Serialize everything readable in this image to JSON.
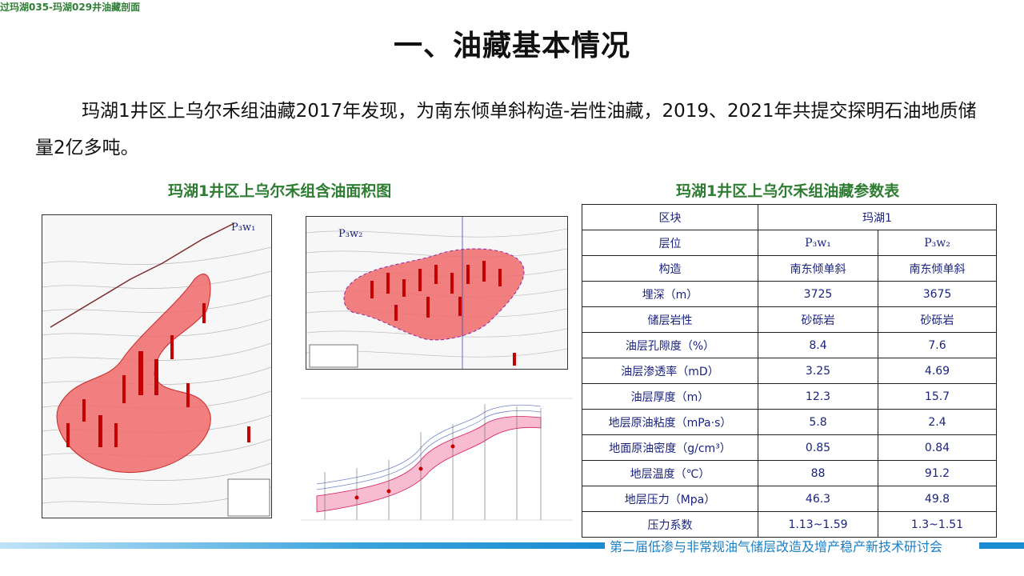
{
  "title": "一、油藏基本情况",
  "intro": {
    "text": "玛湖1井区上乌尔禾组油藏2017年发现，为南东倾单斜构造-岩性油藏，2019、2021年共提交探明石油地质储量2亿多吨。"
  },
  "map_caption": "玛湖1井区上乌尔禾组含油面积图",
  "map1_label": "P₃w₁",
  "map2_label": "P₃w₂",
  "section_caption": "过玛湖035-玛湖029井油藏剖面",
  "table_caption": "玛湖1井区上乌尔禾组油藏参数表",
  "table": {
    "rows": [
      {
        "label": "区块",
        "v1": "玛湖1",
        "v2": ""
      },
      {
        "label": "层位",
        "v1": "P₃w₁",
        "v2": "P₃w₂"
      },
      {
        "label": "构造",
        "v1": "南东倾单斜",
        "v2": "南东倾单斜"
      },
      {
        "label": "埋深（m）",
        "v1": "3725",
        "v2": "3675"
      },
      {
        "label": "储层岩性",
        "v1": "砂砾岩",
        "v2": "砂砾岩"
      },
      {
        "label": "油层孔隙度（%）",
        "v1": "8.4",
        "v2": "7.6"
      },
      {
        "label": "油层渗透率（mD）",
        "v1": "3.25",
        "v2": "4.69"
      },
      {
        "label": "油层厚度（m）",
        "v1": "12.3",
        "v2": "15.7"
      },
      {
        "label": "地层原油粘度（mPa·s）",
        "v1": "5.8",
        "v2": "2.4"
      },
      {
        "label": "地面原油密度（g/cm³）",
        "v1": "0.85",
        "v2": "0.84"
      },
      {
        "label": "地层温度（℃）",
        "v1": "88",
        "v2": "91.2"
      },
      {
        "label": "地层压力（Mpa）",
        "v1": "46.3",
        "v2": "49.8"
      },
      {
        "label": "压力系数",
        "v1": "1.13~1.59",
        "v2": "1.3~1.51"
      }
    ]
  },
  "footer": "第二届低渗与非常规油气储层改造及增产稳产新技术研讨会",
  "colors": {
    "accent_green": "#2e7d32",
    "table_text": "#1a237e",
    "footer_blue": "#1b7fc4",
    "oil_area": "#f06a6a"
  }
}
